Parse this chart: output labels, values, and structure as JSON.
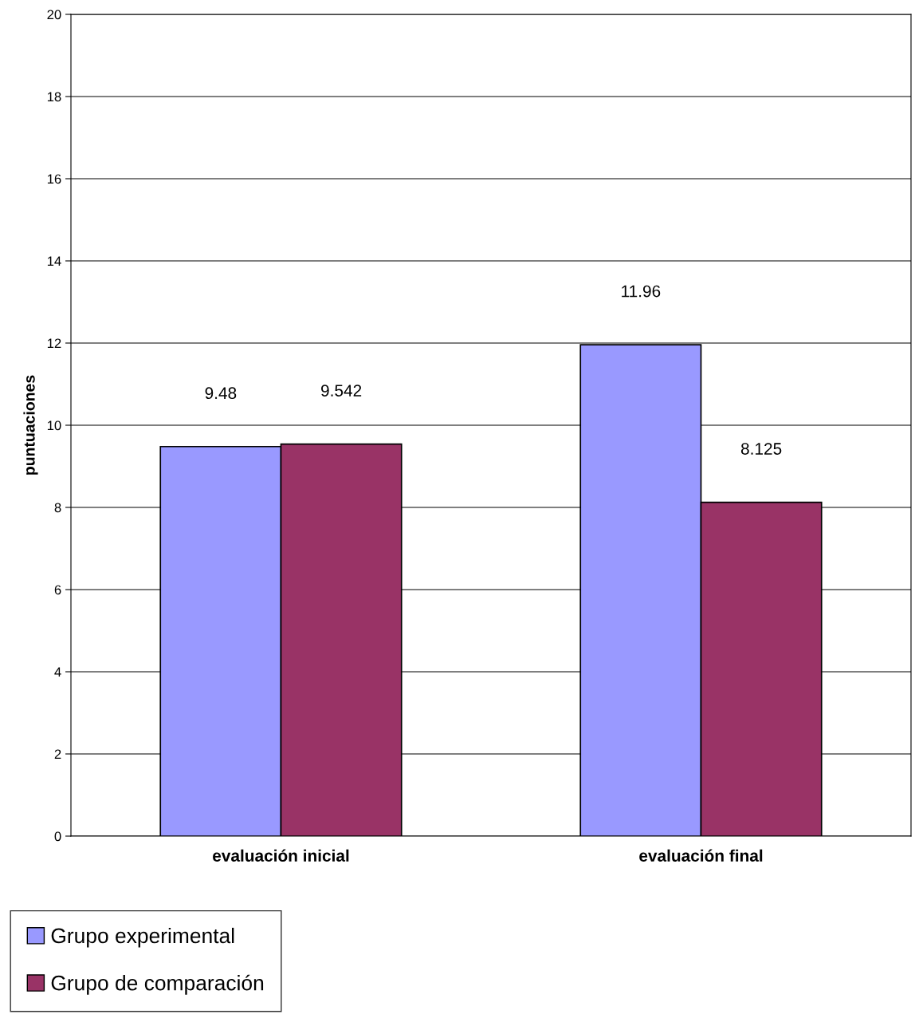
{
  "chart_data": {
    "type": "bar",
    "ylabel": "puntuaciones",
    "categories": [
      "evaluación inicial",
      "evaluación final"
    ],
    "series": [
      {
        "name": "Grupo experimental",
        "color": "#9999ff",
        "values": [
          9.48,
          11.96
        ]
      },
      {
        "name": "Grupo de comparación",
        "color": "#993366",
        "values": [
          9.542,
          8.125
        ]
      }
    ],
    "ylim": [
      0,
      20
    ],
    "yticks": [
      0,
      2,
      4,
      6,
      8,
      10,
      12,
      14,
      16,
      18,
      20
    ],
    "grid": "y",
    "legend": "bottom left",
    "data_labels": true
  }
}
